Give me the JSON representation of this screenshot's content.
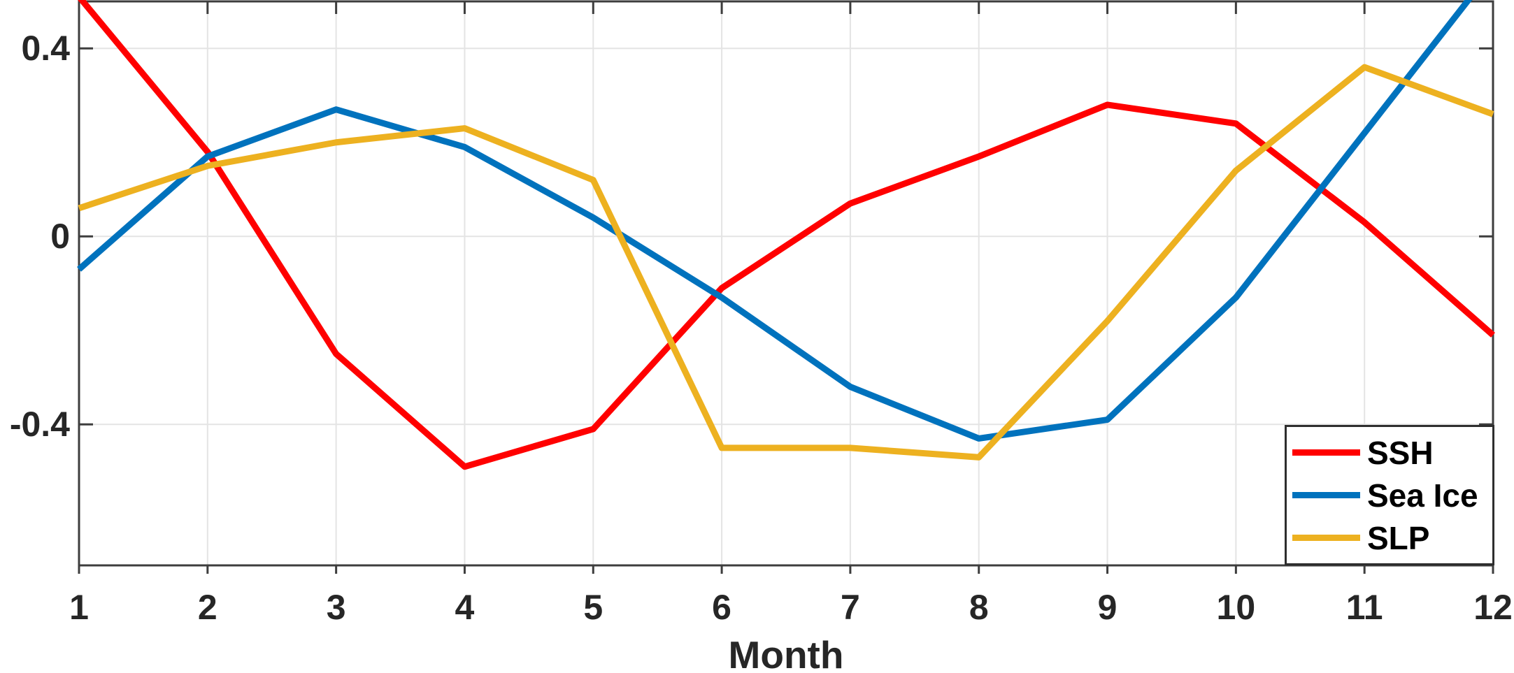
{
  "chart_data": {
    "type": "line",
    "title": "",
    "xlabel": "Month",
    "ylabel": "",
    "x": [
      1,
      2,
      3,
      4,
      5,
      6,
      7,
      8,
      9,
      10,
      11,
      12
    ],
    "x_tick_labels": [
      "1",
      "2",
      "3",
      "4",
      "5",
      "6",
      "7",
      "8",
      "9",
      "10",
      "11",
      "12"
    ],
    "y_ticks": [
      0.4,
      0,
      -0.4
    ],
    "y_tick_labels": [
      "0.4",
      "0",
      "-0.4"
    ],
    "xlim": [
      1,
      12
    ],
    "ylim": [
      -0.7,
      0.5
    ],
    "grid": true,
    "legend_position": "bottom-right",
    "series": [
      {
        "name": "SSH",
        "color": "#ff0000",
        "values": [
          0.51,
          0.18,
          -0.25,
          -0.49,
          -0.41,
          -0.11,
          0.07,
          0.17,
          0.28,
          0.24,
          0.03,
          -0.21
        ]
      },
      {
        "name": "Sea Ice",
        "color": "#0072bd",
        "values": [
          -0.07,
          0.17,
          0.27,
          0.19,
          0.04,
          -0.13,
          -0.32,
          -0.43,
          -0.39,
          -0.13,
          0.22,
          0.57
        ]
      },
      {
        "name": "SLP",
        "color": "#edb120",
        "values": [
          0.06,
          0.15,
          0.2,
          0.23,
          0.12,
          -0.45,
          -0.45,
          -0.47,
          -0.18,
          0.14,
          0.36,
          0.26
        ]
      }
    ]
  },
  "colors": {
    "grid": "#e4e4e4",
    "axis": "#3d3d3d",
    "tick_text": "#262626",
    "background": "#ffffff"
  }
}
